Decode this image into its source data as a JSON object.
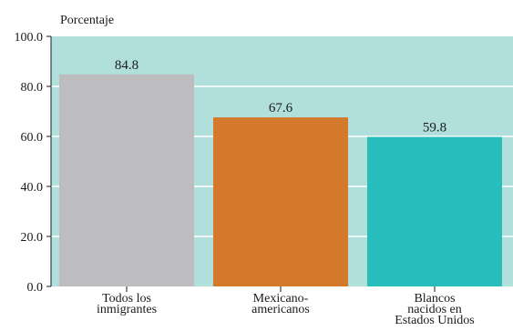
{
  "chart_data": {
    "type": "bar",
    "ylabel": "Porcentaje",
    "xlabel": "",
    "title": "",
    "ylim": [
      0,
      100
    ],
    "yticks": [
      0,
      20,
      40,
      60,
      80,
      100
    ],
    "ytick_labels": [
      "0.0",
      "20.0",
      "40.0",
      "60.0",
      "80.0",
      "100.0"
    ],
    "grid": true,
    "categories": [
      [
        "Todos los",
        "inmigrantes"
      ],
      [
        "Mexicano-",
        "americanos"
      ],
      [
        "Blancos",
        "nacidos en",
        "Estados Unidos"
      ]
    ],
    "values": [
      84.8,
      67.6,
      59.8
    ],
    "value_labels": [
      "84.8",
      "67.6",
      "59.8"
    ],
    "colors": {
      "plot_background": "#b1dfdc",
      "gridline": "#ffffff",
      "bars": [
        "#bdbdbf",
        "#d4782b",
        "#27bdbb"
      ]
    }
  }
}
